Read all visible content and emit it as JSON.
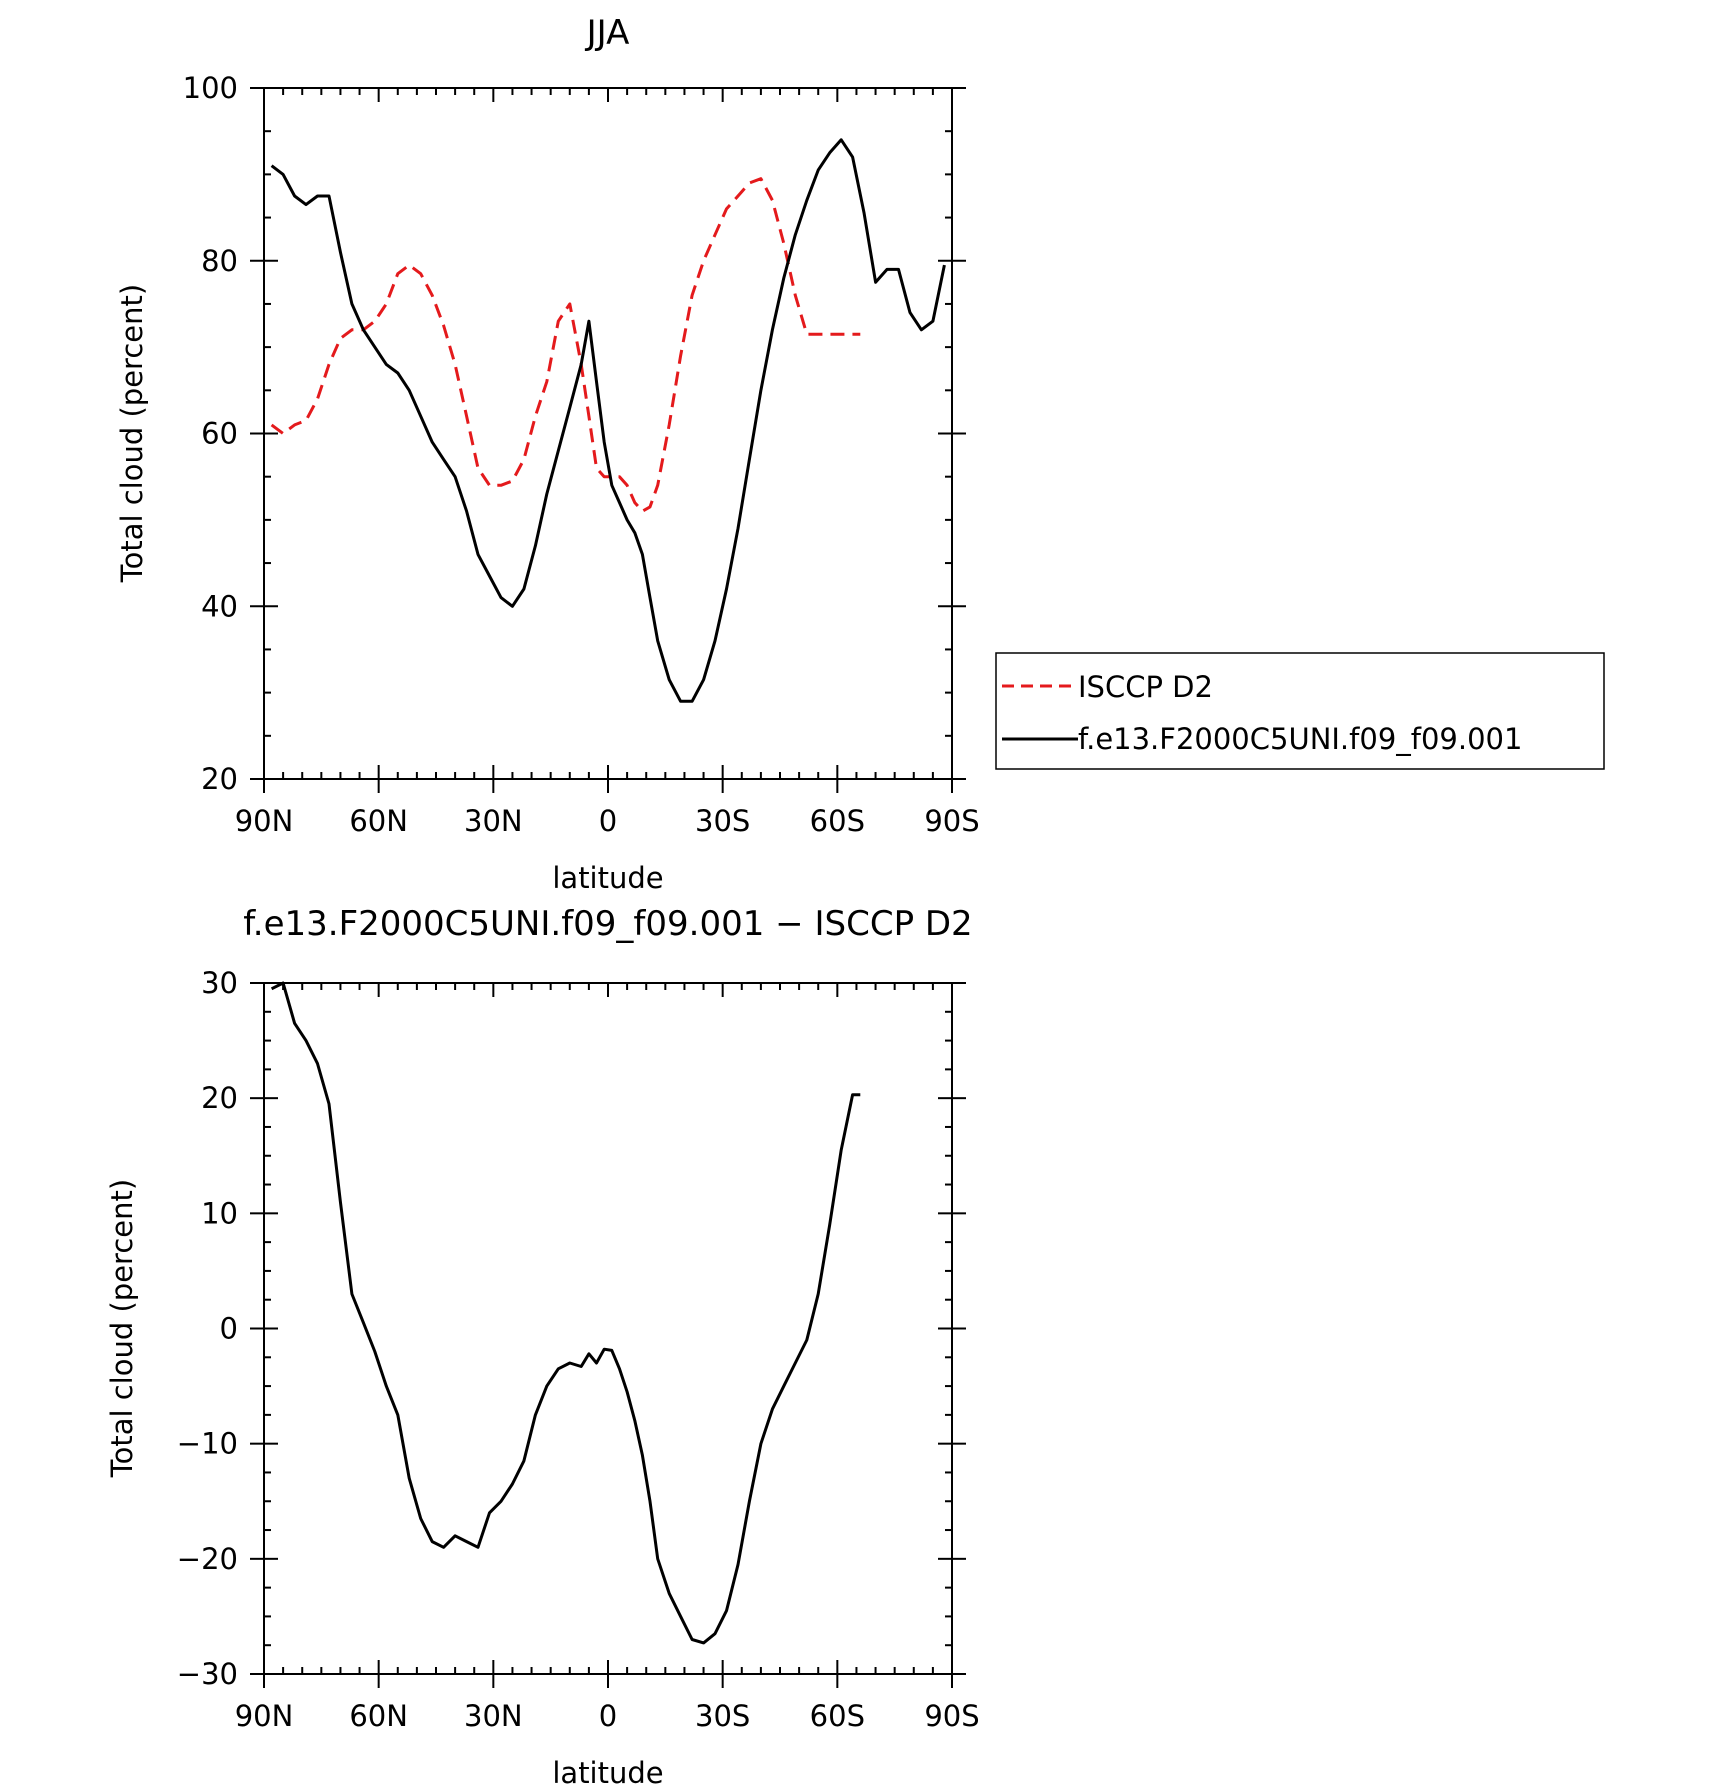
{
  "chart_data": [
    {
      "type": "line",
      "title": "JJA",
      "xlabel": "latitude",
      "ylabel": "Total cloud (percent)",
      "xlim": [
        90,
        -90
      ],
      "ylim": [
        20,
        100
      ],
      "x_tick_values": [
        90,
        60,
        30,
        0,
        -30,
        -60,
        -90
      ],
      "x_tick_labels": [
        "90N",
        "60N",
        "30N",
        "0",
        "30S",
        "60S",
        "90S"
      ],
      "y_tick_values": [
        20,
        40,
        60,
        80,
        100
      ],
      "y_tick_labels": [
        "20",
        "40",
        "60",
        "80",
        "100"
      ],
      "grid": false,
      "legend_position": "right",
      "series": [
        {
          "name": "ISCCP D2",
          "color": "#e41a1c",
          "dash": "dashed",
          "x": [
            88,
            85,
            82,
            79,
            76,
            73,
            70,
            67,
            64,
            61,
            58,
            55,
            52,
            49,
            46,
            43,
            40,
            37,
            34,
            31,
            28,
            25,
            22,
            19,
            16,
            13,
            10,
            7,
            5,
            3,
            1,
            -1,
            -3,
            -5,
            -7,
            -9,
            -11,
            -13,
            -16,
            -19,
            -22,
            -25,
            -28,
            -31,
            -34,
            -37,
            -40,
            -43,
            -46,
            -49,
            -52,
            -55,
            -58,
            -61,
            -64,
            -66
          ],
          "y": [
            61,
            60,
            61,
            61.5,
            64,
            68,
            71,
            72,
            72,
            73,
            75,
            78.5,
            79.5,
            78.5,
            76,
            72.5,
            68,
            62,
            56,
            54,
            54,
            54.5,
            57,
            62,
            66,
            73,
            75,
            68,
            62,
            56,
            55,
            55,
            55,
            54,
            52,
            51,
            51.5,
            54,
            61,
            69,
            76,
            80,
            83,
            86,
            87.5,
            89,
            89.5,
            87,
            82,
            76,
            71.5,
            71.5,
            71.5,
            71.5,
            71.5,
            71.5
          ]
        },
        {
          "name": "f.e13.F2000C5UNI.f09_f09.001",
          "color": "#000000",
          "dash": "solid",
          "x": [
            88,
            85,
            82,
            79,
            76,
            73,
            70,
            67,
            64,
            61,
            58,
            55,
            52,
            49,
            46,
            43,
            40,
            37,
            34,
            31,
            28,
            25,
            22,
            19,
            16,
            13,
            10,
            7,
            5,
            3,
            1,
            -1,
            -3,
            -5,
            -7,
            -9,
            -11,
            -13,
            -16,
            -19,
            -22,
            -25,
            -28,
            -31,
            -34,
            -37,
            -40,
            -43,
            -46,
            -49,
            -52,
            -55,
            -58,
            -61,
            -64,
            -67,
            -70,
            -73,
            -76,
            -79,
            -82,
            -85,
            -88
          ],
          "y": [
            91,
            90,
            87.5,
            86.5,
            87.5,
            87.5,
            81,
            75,
            72,
            70,
            68,
            67,
            65,
            62,
            59,
            57,
            55,
            51,
            46,
            43.5,
            41,
            40,
            42,
            47,
            53,
            58,
            63,
            68,
            73,
            66,
            59,
            54,
            52,
            50,
            48.5,
            46,
            41,
            36,
            31.5,
            29,
            29,
            31.5,
            36,
            42,
            49,
            57,
            65,
            72,
            78,
            83,
            87,
            90.5,
            92.5,
            94,
            92,
            85.5,
            77.5,
            79,
            79,
            74,
            72,
            73,
            79.5
          ]
        }
      ]
    },
    {
      "type": "line",
      "title": "f.e13.F2000C5UNI.f09_f09.001 − ISCCP D2",
      "xlabel": "latitude",
      "ylabel": "Total cloud (percent)",
      "xlim": [
        90,
        -90
      ],
      "ylim": [
        -30,
        30
      ],
      "x_tick_values": [
        90,
        60,
        30,
        0,
        -30,
        -60,
        -90
      ],
      "x_tick_labels": [
        "90N",
        "60N",
        "30N",
        "0",
        "30S",
        "60S",
        "90S"
      ],
      "y_tick_values": [
        -30,
        -20,
        -10,
        0,
        10,
        20,
        30
      ],
      "y_tick_labels": [
        "−30",
        "−20",
        "−10",
        "0",
        "10",
        "20",
        "30"
      ],
      "grid": false,
      "series": [
        {
          "color": "#000000",
          "dash": "solid",
          "x": [
            88,
            85,
            82,
            79,
            76,
            73,
            70,
            67,
            64,
            61,
            58,
            55,
            52,
            49,
            46,
            43,
            40,
            37,
            34,
            31,
            28,
            25,
            22,
            19,
            16,
            13,
            10,
            7,
            5,
            3,
            1,
            -1,
            -3,
            -5,
            -7,
            -9,
            -11,
            -13,
            -16,
            -19,
            -22,
            -25,
            -28,
            -31,
            -34,
            -37,
            -40,
            -43,
            -46,
            -49,
            -52,
            -55,
            -58,
            -61,
            -64,
            -66
          ],
          "y": [
            29.5,
            30,
            26.5,
            25,
            23,
            19.5,
            11,
            3,
            0.5,
            -2,
            -5,
            -7.5,
            -13,
            -16.5,
            -18.5,
            -19,
            -18,
            -18.5,
            -19,
            -16,
            -15,
            -13.5,
            -11.5,
            -7.5,
            -5,
            -3.5,
            -3,
            -3.3,
            -2.2,
            -3,
            -1.8,
            -1.9,
            -3.5,
            -5.5,
            -8,
            -11,
            -15,
            -20,
            -23,
            -25,
            -27,
            -27.3,
            -26.5,
            -24.5,
            -20.5,
            -15,
            -10,
            -7,
            -5,
            -3,
            -1,
            3,
            9,
            15.5,
            20.3,
            20.3
          ]
        }
      ]
    }
  ]
}
